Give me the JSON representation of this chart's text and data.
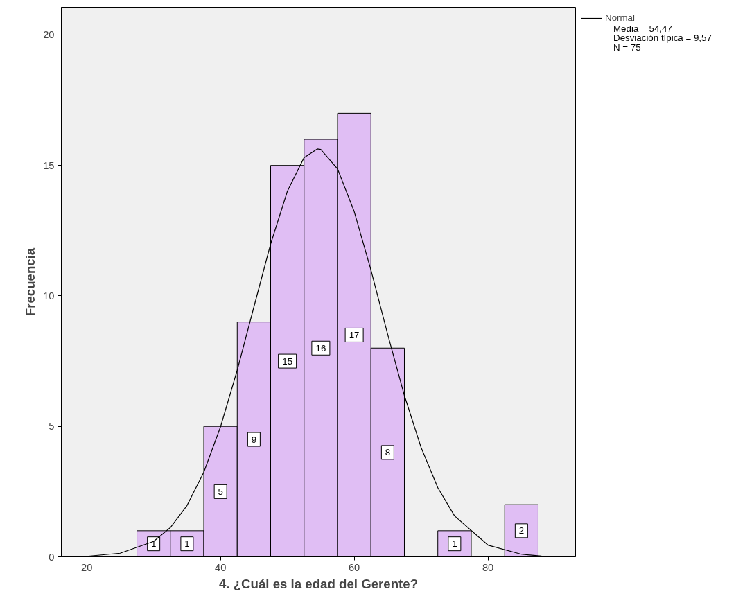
{
  "chart_data": {
    "type": "histogram",
    "xlabel": "4. ¿Cuál es la edad del Gerente?",
    "ylabel": "Frecuencia",
    "bins": [
      27.5,
      32.5,
      37.5,
      42.5,
      47.5,
      52.5,
      57.5,
      62.5,
      67.5,
      72.5,
      77.5,
      82.5,
      87.5
    ],
    "values": [
      1,
      1,
      5,
      9,
      15,
      16,
      17,
      8,
      0,
      1,
      0,
      2
    ],
    "value_labels": [
      "1",
      "1",
      "5",
      "9",
      "15",
      "16",
      "17",
      "8",
      null,
      "1",
      null,
      "2"
    ],
    "color": "#e0bef4",
    "series": [
      {
        "name": "Normal",
        "type": "line",
        "color": "#000000",
        "x": [
          20,
          25,
          30,
          32.5,
          35,
          37.5,
          40,
          42.5,
          45,
          47.5,
          50,
          52.5,
          54.47,
          55,
          57.5,
          60,
          62.5,
          65,
          67.5,
          70,
          72.5,
          75,
          80,
          85,
          88
        ],
        "values": [
          0.02,
          0.14,
          0.59,
          1.12,
          1.97,
          3.24,
          4.98,
          7.15,
          9.58,
          11.99,
          14.01,
          15.3,
          15.63,
          15.61,
          14.87,
          13.23,
          10.99,
          8.53,
          6.18,
          4.19,
          2.65,
          1.57,
          0.45,
          0.1,
          0.03
        ]
      }
    ],
    "annotations": [
      "Media = 54,47",
      "Desviación típica = 9,57",
      "N = 75"
    ],
    "xlim": [
      16.2,
      93.1
    ],
    "ylim": [
      0,
      21.06
    ],
    "xticks": [
      20,
      40,
      60,
      80
    ],
    "yticks": [
      0,
      5,
      10,
      15,
      20
    ],
    "grid": false,
    "legend": "top right"
  }
}
